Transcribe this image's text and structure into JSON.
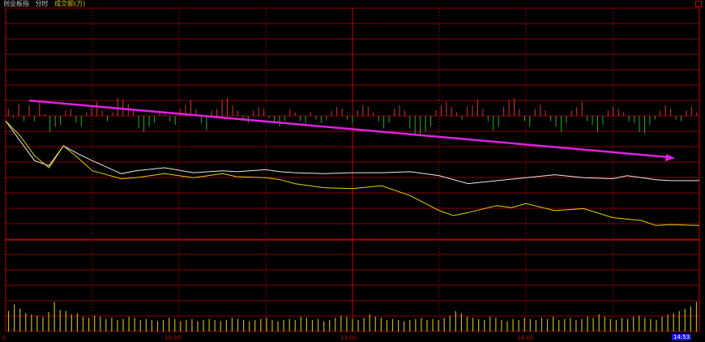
{
  "header": {
    "title": "创业板指",
    "mode": "分时",
    "volume_label": "成交额(万)"
  },
  "time_axis": {
    "ticks": [
      "0",
      "10:30",
      "13:00",
      "14:00"
    ],
    "current_time": "14:53"
  },
  "colors": {
    "background": "#000000",
    "grid": "#8a0000",
    "grid_vertical_major": "#c00000",
    "price_line": "#e8e8e8",
    "avg_line": "#e6d200",
    "up_bar": "#e03030",
    "down_bar": "#20b020",
    "volume_bar": "#c8b400",
    "trend_arrow": "#e020e0",
    "current_time_bg": "#1a1ad8"
  },
  "icons": {
    "close": "close-box-icon",
    "trend": "trend-arrow-icon"
  },
  "chart_data": [
    {
      "type": "line",
      "name": "price_and_average",
      "x_range": [
        0,
        240
      ],
      "series": [
        {
          "name": "",
          "color": "#e8e8e8",
          "x": [
            0,
            5,
            10,
            15,
            20,
            25,
            30,
            40,
            45,
            55,
            65,
            70,
            75,
            80,
            90,
            95,
            100,
            110,
            120,
            130,
            140,
            150,
            160,
            170,
            180,
            190,
            200,
            210,
            215,
            220,
            225,
            230,
            240
          ],
          "y": [
            -0.05,
            -0.25,
            -0.45,
            -0.5,
            -0.3,
            -0.38,
            -0.45,
            -0.58,
            -0.55,
            -0.52,
            -0.57,
            -0.56,
            -0.55,
            -0.56,
            -0.54,
            -0.56,
            -0.57,
            -0.58,
            -0.57,
            -0.57,
            -0.56,
            -0.6,
            -0.68,
            -0.65,
            -0.62,
            -0.59,
            -0.62,
            -0.63,
            -0.6,
            -0.62,
            -0.64,
            -0.65,
            -0.65
          ]
        },
        {
          "name": "",
          "color": "#e6d200",
          "x": [
            0,
            5,
            10,
            15,
            20,
            25,
            30,
            40,
            45,
            55,
            65,
            70,
            75,
            80,
            90,
            95,
            100,
            110,
            120,
            130,
            140,
            150,
            155,
            160,
            170,
            175,
            180,
            190,
            200,
            210,
            220,
            225,
            230,
            240
          ],
          "y": [
            -0.05,
            -0.2,
            -0.4,
            -0.52,
            -0.3,
            -0.42,
            -0.55,
            -0.63,
            -0.62,
            -0.58,
            -0.62,
            -0.6,
            -0.58,
            -0.61,
            -0.62,
            -0.64,
            -0.68,
            -0.72,
            -0.73,
            -0.7,
            -0.8,
            -0.95,
            -1.0,
            -0.97,
            -0.9,
            -0.92,
            -0.88,
            -0.95,
            -0.93,
            -1.02,
            -1.05,
            -1.1,
            -1.09,
            -1.1
          ]
        }
      ]
    },
    {
      "type": "bar",
      "name": "buy_sell_strength",
      "x_range": [
        0,
        240
      ],
      "values": [
        0.4,
        -0.1,
        0.7,
        -0.3,
        0.6,
        -0.3,
        0.8,
        0.1,
        -0.9,
        -0.6,
        -0.5,
        0.3,
        0.4,
        -0.4,
        -0.6,
        0.2,
        0.5,
        0.8,
        0.3,
        -0.3,
        0.2,
        1.0,
        0.9,
        0.7,
        0.3,
        -0.7,
        -0.9,
        -0.6,
        -0.4,
        0.3,
        0.2,
        -0.3,
        -0.5,
        0.4,
        0.6,
        0.9,
        0.4,
        -0.4,
        -0.8,
        0.3,
        0.4,
        0.9,
        1.0,
        0.6,
        0.3,
        -0.2,
        -0.4,
        0.3,
        0.5,
        0.4,
        -0.1,
        -0.4,
        -0.6,
        -0.3,
        0.4,
        0.2,
        -0.3,
        -0.4,
        0.2,
        -0.2,
        -0.4,
        -0.2,
        0.3,
        0.5,
        0.4,
        -0.2,
        -0.4,
        0.3,
        0.6,
        0.5,
        0.2,
        -0.3,
        -0.7,
        -0.4,
        0.4,
        0.6,
        0.3,
        -0.7,
        -1.0,
        -1.1,
        -0.9,
        -0.6,
        0.3,
        0.6,
        0.8,
        0.5,
        0.2,
        -0.2,
        0.5,
        0.6,
        0.9,
        0.4,
        -0.3,
        -0.8,
        -0.6,
        0.5,
        0.9,
        1.0,
        0.4,
        -0.3,
        -0.6,
        0.4,
        0.6,
        0.3,
        -0.3,
        -0.6,
        -0.9,
        -0.4,
        0.3,
        0.5,
        0.8,
        -0.3,
        -0.5,
        -0.9,
        -0.5,
        0.3,
        0.5,
        0.4,
        0.2,
        -0.3,
        -0.4,
        -0.9,
        -1.0,
        -0.5,
        -0.2,
        0.3,
        0.6,
        0.4,
        -0.2,
        -0.3,
        0.3,
        0.5,
        0.2
      ]
    },
    {
      "type": "bar",
      "name": "volume",
      "x_range": [
        0,
        240
      ],
      "values": [
        1.8,
        2.4,
        2.0,
        1.6,
        1.5,
        1.4,
        1.3,
        1.7,
        2.6,
        1.9,
        1.8,
        1.5,
        1.6,
        1.3,
        1.2,
        1.4,
        1.3,
        1.1,
        1.2,
        1.0,
        1.1,
        1.3,
        1.2,
        1.0,
        1.1,
        1.0,
        0.9,
        1.0,
        1.2,
        1.1,
        0.9,
        1.0,
        1.1,
        0.9,
        1.0,
        1.1,
        1.0,
        0.9,
        1.0,
        1.2,
        1.1,
        1.0,
        0.9,
        1.0,
        1.1,
        1.2,
        1.0,
        0.9,
        1.0,
        1.1,
        1.0,
        1.3,
        1.2,
        1.0,
        1.1,
        0.9,
        1.0,
        1.2,
        1.4,
        1.3,
        1.1,
        1.0,
        1.2,
        1.5,
        1.3,
        1.2,
        1.0,
        1.1,
        1.0,
        0.9,
        1.0,
        1.1,
        1.2,
        1.0,
        1.1,
        1.0,
        1.2,
        1.4,
        1.8,
        1.6,
        1.3,
        1.2,
        1.1,
        1.0,
        1.3,
        1.2,
        1.0,
        0.9,
        1.1,
        1.0,
        1.2,
        1.1,
        1.0,
        1.2,
        1.1,
        1.3,
        1.0,
        1.1,
        1.2,
        1.0,
        1.1,
        1.3,
        1.2,
        1.5,
        1.3,
        1.1,
        1.0,
        1.2,
        1.1,
        1.3,
        1.4,
        1.2,
        1.1,
        1.0,
        1.3,
        1.5,
        1.6,
        1.8,
        2.0,
        2.2,
        2.6
      ]
    }
  ]
}
